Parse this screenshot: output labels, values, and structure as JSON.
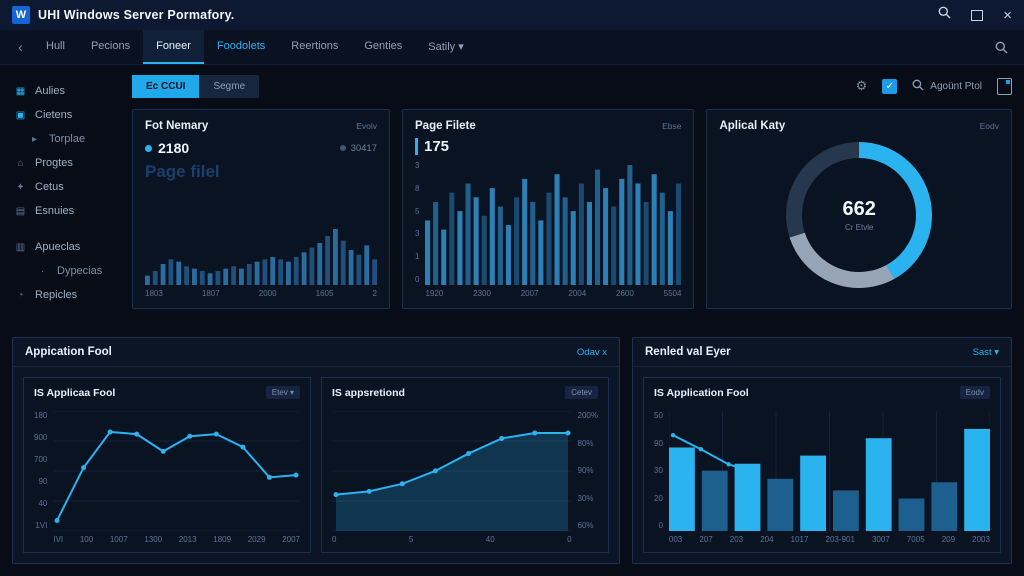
{
  "colors": {
    "accent": "#2bb3f0",
    "bar_bright": "#2bb3f0",
    "bar_muted": "#1d5f8f",
    "logo_blue": "#1565d8"
  },
  "titlebar": {
    "logo_letter": "W",
    "title": "UHI Windows Server Pormafory."
  },
  "nav": {
    "back_glyph": "‹",
    "tabs": [
      {
        "label": "Hull"
      },
      {
        "label": "Pecions"
      },
      {
        "label": "Foneer"
      },
      {
        "label": "Foodolets"
      },
      {
        "label": "Reertions"
      },
      {
        "label": "Genties"
      },
      {
        "label": "Satily ▾"
      }
    ]
  },
  "sidebar": {
    "items": [
      {
        "icon": "▦",
        "label": "Aulies"
      },
      {
        "icon": "▣",
        "label": "Cietens"
      },
      {
        "icon": "▸",
        "label": "Torplae"
      },
      {
        "icon": "⌂",
        "label": "Progtes"
      },
      {
        "icon": "✦",
        "label": "Cetus"
      },
      {
        "icon": "▤",
        "label": "Esnuies"
      },
      {
        "icon": "▥",
        "label": "Apueclas"
      },
      {
        "icon": "·",
        "label": "Dypecias"
      },
      {
        "icon": "◔",
        "label": "Repicles"
      }
    ]
  },
  "toolbar": {
    "seg_active": "Ec CCUI",
    "seg_inactive": "Segme",
    "gear_glyph": "⚙",
    "check_glyph": "✓",
    "search_label": "Agoünt Ptol"
  },
  "memory_panel": {
    "title": "Fot Nemary",
    "action": "Evolv",
    "legend_primary": "2180",
    "legend_secondary": "30417",
    "ghost_text": "Page filel",
    "chart": {
      "type": "bar",
      "gap": 3,
      "colors": [
        "#2a6ba0",
        "#1f4f7a"
      ],
      "values": [
        4,
        6,
        9,
        11,
        10,
        8,
        7,
        6,
        5,
        6,
        7,
        8,
        7,
        9,
        10,
        11,
        12,
        11,
        10,
        12,
        14,
        16,
        18,
        21,
        24,
        19,
        15,
        13,
        17,
        11
      ],
      "x_labels": [
        "1803",
        "1807",
        "2000",
        "1605",
        "2"
      ]
    }
  },
  "pagefile_panel": {
    "title": "Page Filete",
    "action": "Ebse",
    "value": "175",
    "chart": {
      "type": "bar",
      "gap": 3,
      "colors": [
        "#2d7fb5",
        "#215f8c",
        "#2d7fb5",
        "#1a4a70"
      ],
      "values": [
        14,
        18,
        12,
        20,
        16,
        22,
        19,
        15,
        21,
        17,
        13,
        19,
        23,
        18,
        14,
        20,
        24,
        19,
        16,
        22,
        18,
        25,
        21,
        17,
        23,
        26,
        22,
        18,
        24,
        20,
        16,
        22
      ],
      "y_labels": [
        "3",
        "8",
        "5",
        "3",
        "1",
        "0"
      ],
      "x_labels": [
        "1920",
        "2300",
        "2007",
        "2004",
        "2600",
        "5504"
      ]
    }
  },
  "gauge_panel": {
    "title": "Aplical Katy",
    "action": "Eodv",
    "center_value": "662",
    "center_label": "Cr Etvle",
    "chart": {
      "type": "donut",
      "thickness": 16,
      "segments": [
        {
          "name": "primary",
          "value": 42,
          "color": "#2bb3f0"
        },
        {
          "name": "secondary",
          "value": 28,
          "color": "#96a5b6"
        },
        {
          "name": "remainder",
          "value": 30,
          "color": "#26374e"
        }
      ]
    }
  },
  "apppool_panel": {
    "title": "Appication Fool",
    "action": "Odav x",
    "line_card": {
      "title": "IS Applicaa Fool",
      "badge": "Etev ▾",
      "chart": {
        "type": "line",
        "markers": true,
        "max": 100,
        "grid": 4,
        "color": "#2bb3f0",
        "values": [
          6,
          55,
          88,
          86,
          70,
          84,
          86,
          74,
          46,
          48
        ],
        "y_labels": [
          "180",
          "900",
          "700",
          "90",
          "40",
          "1VI"
        ],
        "x_labels": [
          "IVI",
          "100",
          "1007",
          "1300",
          "2013",
          "1809",
          "2029",
          "2007"
        ]
      }
    },
    "area_card": {
      "title": "IS appsretiond",
      "badge": "Cetev",
      "chart": {
        "type": "area",
        "markers": true,
        "max": 100,
        "grid": 4,
        "color": "#2bb3f0",
        "fill": "rgba(43,179,240,0.22)",
        "values": [
          30,
          33,
          40,
          52,
          68,
          82,
          87,
          87
        ],
        "y_labels": [
          "200%",
          "80%",
          "90%",
          "30%",
          "60%"
        ],
        "x_labels": [
          "0",
          "5",
          "40",
          "0"
        ]
      }
    }
  },
  "events_panel": {
    "title": "Renled val Eyer",
    "action": "Sast ▾",
    "bar_card": {
      "title": "IS Application Fool",
      "badge": "Eodv",
      "chart": {
        "type": "bar",
        "gap": 7,
        "max": 100,
        "vgrid": 6,
        "colors": [
          "#2bb3f0",
          "#1d5f8f",
          "#2bb3f0",
          "#1d5f8f",
          "#2bb3f0",
          "#1d5f8f",
          "#2bb3f0",
          "#1d5f8f",
          "#1d5f8f",
          "#2bb3f0"
        ],
        "values": [
          72,
          52,
          58,
          45,
          65,
          35,
          80,
          28,
          42,
          88
        ],
        "overlay_line": {
          "values": [
            85,
            72,
            58,
            50
          ],
          "span": 0.26,
          "max": 100,
          "color": "#2bb3f0"
        },
        "y_labels": [
          "50",
          "90",
          "30",
          "20",
          "0"
        ],
        "x_labels": [
          "003",
          "207",
          "203",
          "204",
          "1017",
          "203-901",
          "3007",
          "7005",
          "209",
          "2003"
        ]
      }
    }
  }
}
